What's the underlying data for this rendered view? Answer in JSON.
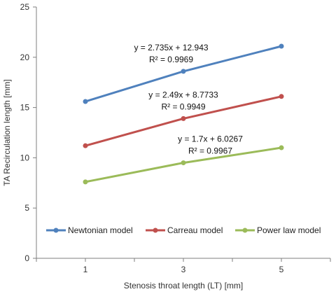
{
  "chart_data": {
    "type": "line",
    "title": "",
    "xlabel": "Stenosis throat length (LT) [mm]",
    "ylabel": "TA Recirculation length [mm]",
    "x": [
      1,
      3,
      5
    ],
    "x_ticks": [
      "1",
      "3",
      "5"
    ],
    "ylim": [
      0,
      25
    ],
    "y_ticks": [
      "0",
      "5",
      "10",
      "15",
      "20",
      "25"
    ],
    "grid": false,
    "legend_position": "bottom-inside",
    "series": [
      {
        "name": "Newtonian model",
        "color": "#4f81bd",
        "values": [
          15.6,
          18.6,
          21.1
        ],
        "trend_equation": "y = 2.735x + 12.943",
        "r_squared": "R² = 0.9969"
      },
      {
        "name": "Carreau model",
        "color": "#c0504d",
        "values": [
          11.2,
          13.9,
          16.1
        ],
        "trend_equation": "y = 2.49x + 8.7733",
        "r_squared": "R² = 0.9949"
      },
      {
        "name": "Power law model",
        "color": "#9bbb59",
        "values": [
          7.6,
          9.5,
          11.0
        ],
        "trend_equation": "y = 1.7x + 6.0267",
        "r_squared": "R² = 0.9967"
      }
    ]
  }
}
